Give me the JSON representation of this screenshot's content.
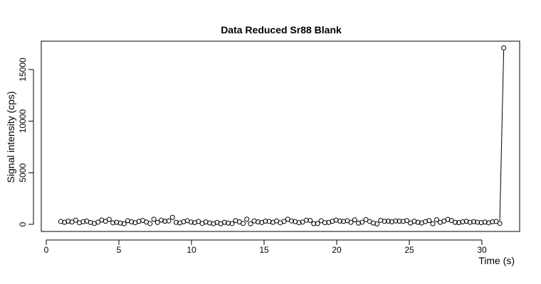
{
  "chart_data": {
    "type": "scatter",
    "title": "Data Reduced Sr88 Blank",
    "xlabel": "Time (s)",
    "ylabel": "Signal intensity (cps)",
    "xlim": [
      0,
      32.5
    ],
    "ylim": [
      -300,
      17600
    ],
    "x_ticks": [
      0,
      5,
      10,
      15,
      20,
      25,
      30
    ],
    "y_ticks": [
      0,
      5000,
      10000,
      15000
    ],
    "x_tick_labels": [
      "0",
      "5",
      "10",
      "15",
      "20",
      "25",
      "30"
    ],
    "y_tick_labels": [
      "0",
      "5000",
      "10000",
      "15000"
    ],
    "grid": false,
    "legend": "none",
    "series": [
      {
        "x": [
          1.0,
          1.26,
          1.51,
          1.77,
          2.03,
          2.28,
          2.54,
          2.79,
          3.05,
          3.31,
          3.56,
          3.82,
          4.08,
          4.33,
          4.59,
          4.84,
          5.1,
          5.36,
          5.61,
          5.87,
          6.12,
          6.38,
          6.64,
          6.89,
          7.15,
          7.41,
          7.66,
          7.92,
          8.17,
          8.43,
          8.69,
          8.94,
          9.2,
          9.46,
          9.71,
          9.97,
          10.22,
          10.48,
          10.74,
          10.99,
          11.25,
          11.51,
          11.76,
          12.02,
          12.27,
          12.53,
          12.79,
          13.04,
          13.3,
          13.55,
          13.81,
          14.07,
          14.32,
          14.58,
          14.84,
          15.09,
          15.35,
          15.6,
          15.86,
          16.12,
          16.37,
          16.63,
          16.89,
          17.14,
          17.4,
          17.65,
          17.91,
          18.17,
          18.42,
          18.68,
          18.93,
          19.19,
          19.45,
          19.7,
          19.96,
          20.22,
          20.47,
          20.73,
          20.98,
          21.24,
          21.5,
          21.75,
          22.01,
          22.27,
          22.52,
          22.78,
          23.03,
          23.29,
          23.55,
          23.8,
          24.06,
          24.31,
          24.57,
          24.83,
          25.08,
          25.34,
          25.6,
          25.85,
          26.11,
          26.36,
          26.62,
          26.88,
          27.13,
          27.39,
          27.65,
          27.9,
          28.16,
          28.41,
          28.67,
          28.93,
          29.18,
          29.44,
          29.69,
          29.95,
          30.21,
          30.46,
          30.72,
          30.98,
          31.23,
          31.5
        ],
        "y": [
          280,
          200,
          310,
          230,
          400,
          150,
          260,
          320,
          180,
          90,
          210,
          420,
          300,
          480,
          150,
          200,
          120,
          60,
          350,
          240,
          160,
          290,
          380,
          220,
          80,
          500,
          190,
          410,
          300,
          330,
          680,
          200,
          140,
          260,
          350,
          220,
          170,
          280,
          90,
          230,
          140,
          70,
          190,
          60,
          200,
          120,
          80,
          360,
          240,
          90,
          500,
          60,
          330,
          240,
          180,
          310,
          280,
          200,
          330,
          150,
          280,
          500,
          330,
          270,
          160,
          220,
          400,
          380,
          70,
          80,
          350,
          160,
          190,
          300,
          410,
          320,
          280,
          350,
          200,
          440,
          120,
          210,
          460,
          280,
          130,
          40,
          390,
          290,
          320,
          250,
          330,
          310,
          280,
          360,
          130,
          300,
          200,
          140,
          270,
          370,
          60,
          450,
          200,
          320,
          480,
          380,
          200,
          170,
          240,
          300,
          200,
          260,
          210,
          170,
          220,
          150,
          250,
          280,
          90,
          17100
        ]
      }
    ]
  }
}
